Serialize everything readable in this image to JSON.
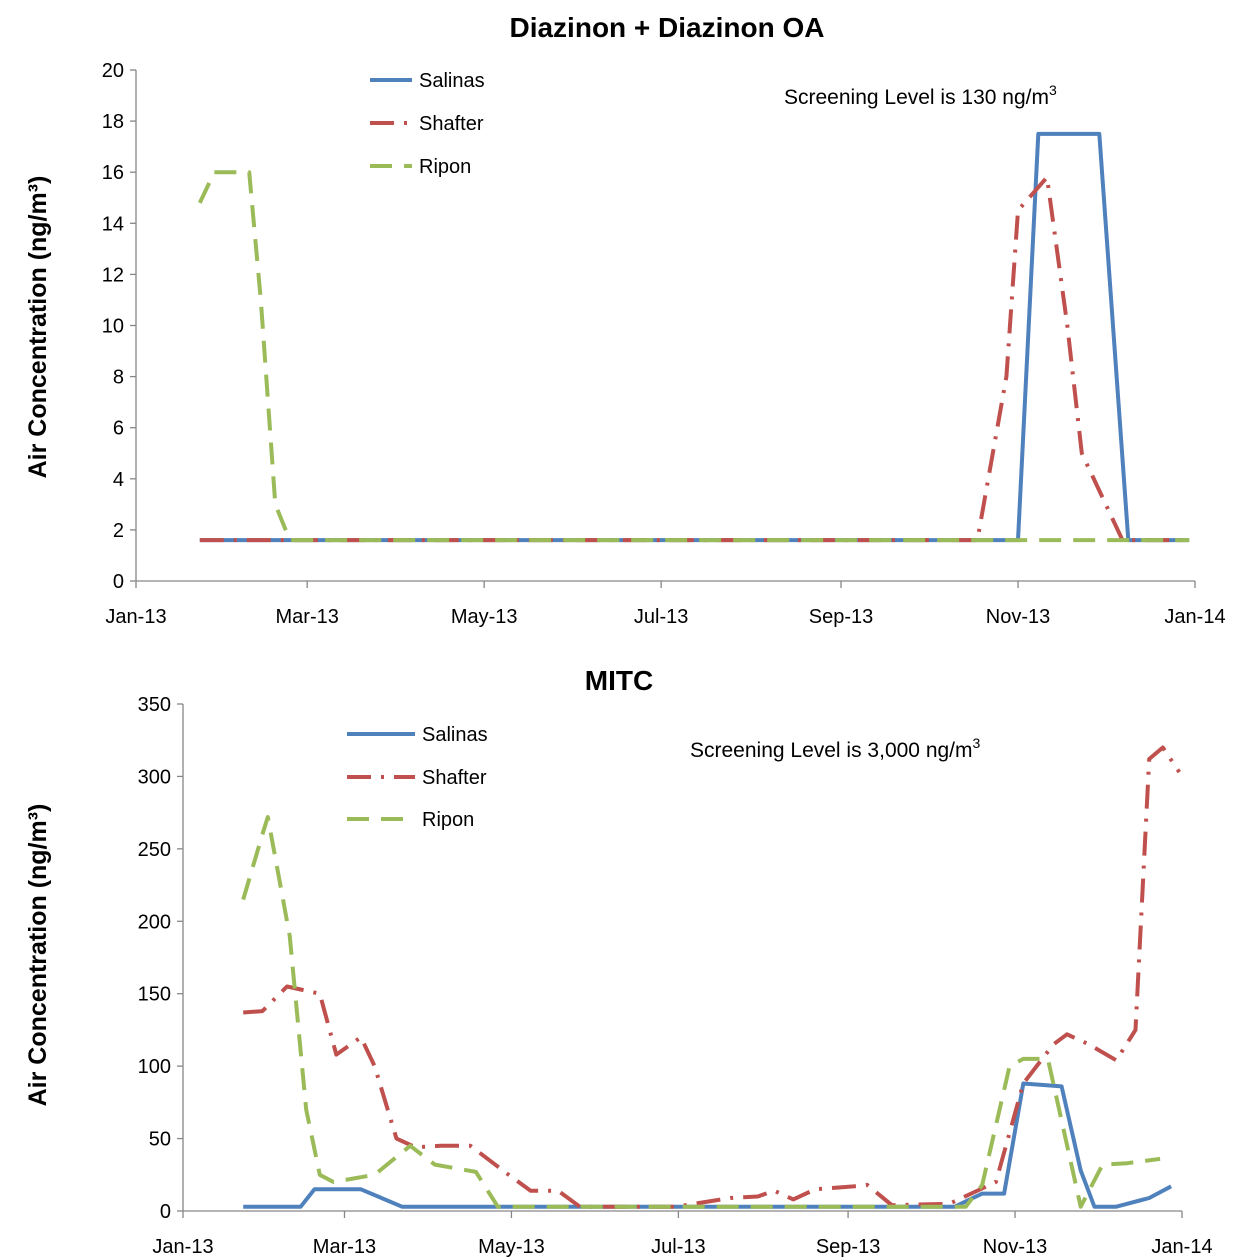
{
  "chart_data": [
    {
      "type": "line",
      "title": "Diazinon + Diazinon OA",
      "ylabel": "Air Concentration (ng/m³)",
      "xlabel": "",
      "x_ticks": [
        "Jan-13",
        "Mar-13",
        "May-13",
        "Jul-13",
        "Sep-13",
        "Nov-13",
        "Jan-14"
      ],
      "xlim": [
        "2013-01-01",
        "2014-01-01"
      ],
      "ylim": [
        0,
        20
      ],
      "y_ticks": [
        0,
        2,
        4,
        6,
        8,
        10,
        12,
        14,
        16,
        18,
        20
      ],
      "grid": false,
      "legend": "top-left",
      "annotation": {
        "text": "Screening Level is 130 ng/m",
        "sup": "3"
      },
      "series": [
        {
          "name": "Salinas",
          "color": "#4F81BD",
          "dash": "solid",
          "points": [
            [
              "2013-01-23",
              1.6
            ],
            [
              "2013-11-01",
              1.6
            ],
            [
              "2013-11-08",
              17.5
            ],
            [
              "2013-11-29",
              17.5
            ],
            [
              "2013-12-09",
              1.6
            ],
            [
              "2013-12-30",
              1.6
            ]
          ]
        },
        {
          "name": "Shafter",
          "color": "#C0504D",
          "dash": "dashdot",
          "points": [
            [
              "2013-01-23",
              1.6
            ],
            [
              "2013-10-18",
              1.6
            ],
            [
              "2013-10-28",
              8
            ],
            [
              "2013-11-01",
              14.5
            ],
            [
              "2013-11-11",
              15.8
            ],
            [
              "2013-11-18",
              10
            ],
            [
              "2013-11-23",
              5
            ],
            [
              "2013-12-07",
              1.6
            ],
            [
              "2013-12-30",
              1.6
            ]
          ]
        },
        {
          "name": "Ripon",
          "color": "#9BBB59",
          "dash": "dash",
          "points": [
            [
              "2013-01-23",
              14.8
            ],
            [
              "2013-01-28",
              16
            ],
            [
              "2013-02-09",
              16
            ],
            [
              "2013-02-13",
              11
            ],
            [
              "2013-02-18",
              3
            ],
            [
              "2013-02-23",
              1.6
            ],
            [
              "2013-12-30",
              1.6
            ]
          ]
        }
      ]
    },
    {
      "type": "line",
      "title": "MITC",
      "ylabel": "Air Concentration (ng/m³)",
      "xlabel": "",
      "x_ticks": [
        "Jan-13",
        "Mar-13",
        "May-13",
        "Jul-13",
        "Sep-13",
        "Nov-13",
        "Jan-14"
      ],
      "xlim": [
        "2013-01-01",
        "2014-01-01"
      ],
      "ylim": [
        0,
        350
      ],
      "y_ticks": [
        0,
        50,
        100,
        150,
        200,
        250,
        300,
        350
      ],
      "grid": false,
      "legend": "top-left",
      "annotation": {
        "text": "Screening Level is 3,000 ng/m",
        "sup": "3"
      },
      "series": [
        {
          "name": "Salinas",
          "color": "#4F81BD",
          "dash": "solid",
          "points": [
            [
              "2013-01-23",
              3
            ],
            [
              "2013-02-13",
              3
            ],
            [
              "2013-02-18",
              15
            ],
            [
              "2013-03-07",
              15
            ],
            [
              "2013-03-22",
              3
            ],
            [
              "2013-10-10",
              3
            ],
            [
              "2013-10-20",
              12
            ],
            [
              "2013-10-28",
              12
            ],
            [
              "2013-11-04",
              88
            ],
            [
              "2013-11-18",
              86
            ],
            [
              "2013-11-25",
              28
            ],
            [
              "2013-11-30",
              3
            ],
            [
              "2013-12-08",
              3
            ],
            [
              "2013-12-20",
              9
            ],
            [
              "2013-12-28",
              17
            ]
          ]
        },
        {
          "name": "Shafter",
          "color": "#C0504D",
          "dash": "dashdot",
          "points": [
            [
              "2013-01-23",
              137
            ],
            [
              "2013-01-30",
              138
            ],
            [
              "2013-02-08",
              155
            ],
            [
              "2013-02-20",
              150
            ],
            [
              "2013-02-26",
              108
            ],
            [
              "2013-03-07",
              120
            ],
            [
              "2013-03-12",
              100
            ],
            [
              "2013-03-20",
              50
            ],
            [
              "2013-03-27",
              44
            ],
            [
              "2013-04-05",
              45
            ],
            [
              "2013-04-16",
              45
            ],
            [
              "2013-04-30",
              25
            ],
            [
              "2013-05-08",
              14
            ],
            [
              "2013-05-18",
              14
            ],
            [
              "2013-05-26",
              3
            ],
            [
              "2013-06-30",
              3
            ],
            [
              "2013-07-20",
              9
            ],
            [
              "2013-07-30",
              10
            ],
            [
              "2013-08-05",
              14
            ],
            [
              "2013-08-12",
              8
            ],
            [
              "2013-08-20",
              15
            ],
            [
              "2013-09-03",
              17
            ],
            [
              "2013-09-08",
              18
            ],
            [
              "2013-09-17",
              4
            ],
            [
              "2013-10-08",
              5
            ],
            [
              "2013-10-25",
              20
            ],
            [
              "2013-11-04",
              88
            ],
            [
              "2013-11-15",
              115
            ],
            [
              "2013-11-20",
              122
            ],
            [
              "2013-11-28",
              115
            ],
            [
              "2013-12-08",
              104
            ],
            [
              "2013-12-15",
              125
            ],
            [
              "2013-12-20",
              312
            ],
            [
              "2013-12-25",
              320
            ],
            [
              "2013-12-31",
              303
            ]
          ]
        },
        {
          "name": "Ripon",
          "color": "#9BBB59",
          "dash": "dash",
          "points": [
            [
              "2013-01-23",
              215
            ],
            [
              "2013-01-30",
              260
            ],
            [
              "2013-02-01",
              272
            ],
            [
              "2013-02-09",
              190
            ],
            [
              "2013-02-15",
              70
            ],
            [
              "2013-02-20",
              25
            ],
            [
              "2013-02-25",
              20
            ],
            [
              "2013-03-12",
              25
            ],
            [
              "2013-03-25",
              45
            ],
            [
              "2013-04-03",
              32
            ],
            [
              "2013-04-18",
              27
            ],
            [
              "2013-04-26",
              3
            ],
            [
              "2013-10-14",
              3
            ],
            [
              "2013-10-20",
              18
            ],
            [
              "2013-10-30",
              100
            ],
            [
              "2013-11-04",
              105
            ],
            [
              "2013-11-13",
              105
            ],
            [
              "2013-11-25",
              3
            ],
            [
              "2013-12-03",
              32
            ],
            [
              "2013-12-12",
              33
            ],
            [
              "2013-12-24",
              36
            ]
          ]
        }
      ]
    }
  ]
}
